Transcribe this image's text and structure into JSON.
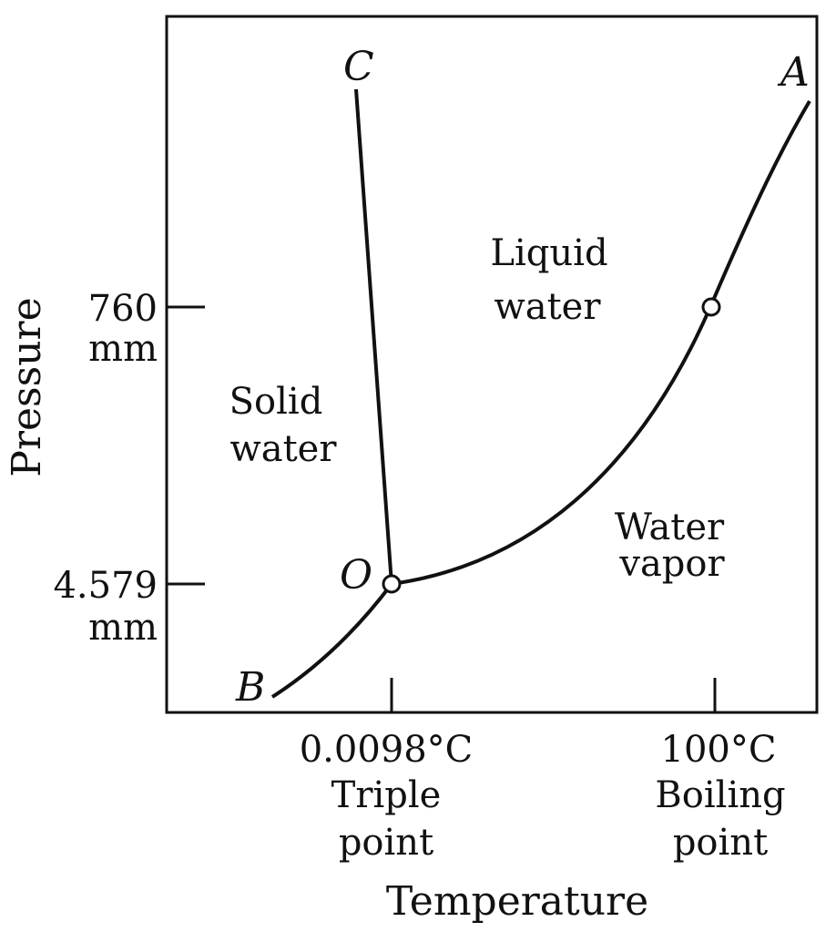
{
  "diagram": {
    "axes": {
      "y_title": "Pressure",
      "x_title": "Temperature",
      "y_ticks": [
        {
          "line1": "760",
          "line2": "mm"
        },
        {
          "line1": "4.579",
          "line2": "mm"
        }
      ],
      "x_ticks": [
        {
          "line1": "0.0098°C",
          "line2": "Triple",
          "line3": "point"
        },
        {
          "line1": "100°C",
          "line2": "Boiling",
          "line3": "point"
        }
      ]
    },
    "regions": {
      "solid": {
        "line1": "Solid",
        "line2": "water"
      },
      "liquid": {
        "line1": "Liquid",
        "line2": "water"
      },
      "vapor": {
        "line1": "Water",
        "line2": "vapor"
      }
    },
    "points": {
      "A": "A",
      "B": "B",
      "C": "C",
      "O": "O"
    },
    "colors": {
      "ink": "#111111",
      "background": "#ffffff"
    }
  }
}
